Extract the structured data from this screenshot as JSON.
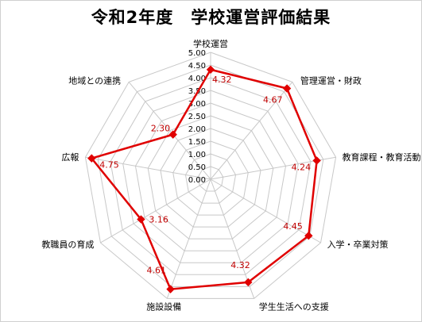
{
  "chart_data": {
    "type": "radar",
    "title": "令和2年度　学校運営評価結果",
    "categories": [
      "学校運営",
      "管理運営・財政",
      "教育課程・教育活動",
      "入学・卒業対策",
      "学生生活への支援",
      "施設設備",
      "教職員の育成",
      "広報",
      "地域との連携"
    ],
    "series": [
      {
        "values": [
          4.32,
          4.67,
          4.24,
          4.45,
          4.32,
          4.61,
          3.16,
          4.75,
          2.3
        ]
      }
    ],
    "data_labels": [
      "4.32",
      "4.67",
      "4.24",
      "4.45",
      "4.32",
      "4.61",
      "3.16",
      "4.75",
      "2.30"
    ],
    "rlim": [
      0,
      5
    ],
    "ticks": [
      "0.00",
      "0.50",
      "1.00",
      "1.50",
      "2.00",
      "2.50",
      "3.00",
      "3.50",
      "4.00",
      "4.50",
      "5.00"
    ],
    "grid": true,
    "series_color": "#e00000",
    "grid_color": "#c8c8c8",
    "legend": "none"
  }
}
